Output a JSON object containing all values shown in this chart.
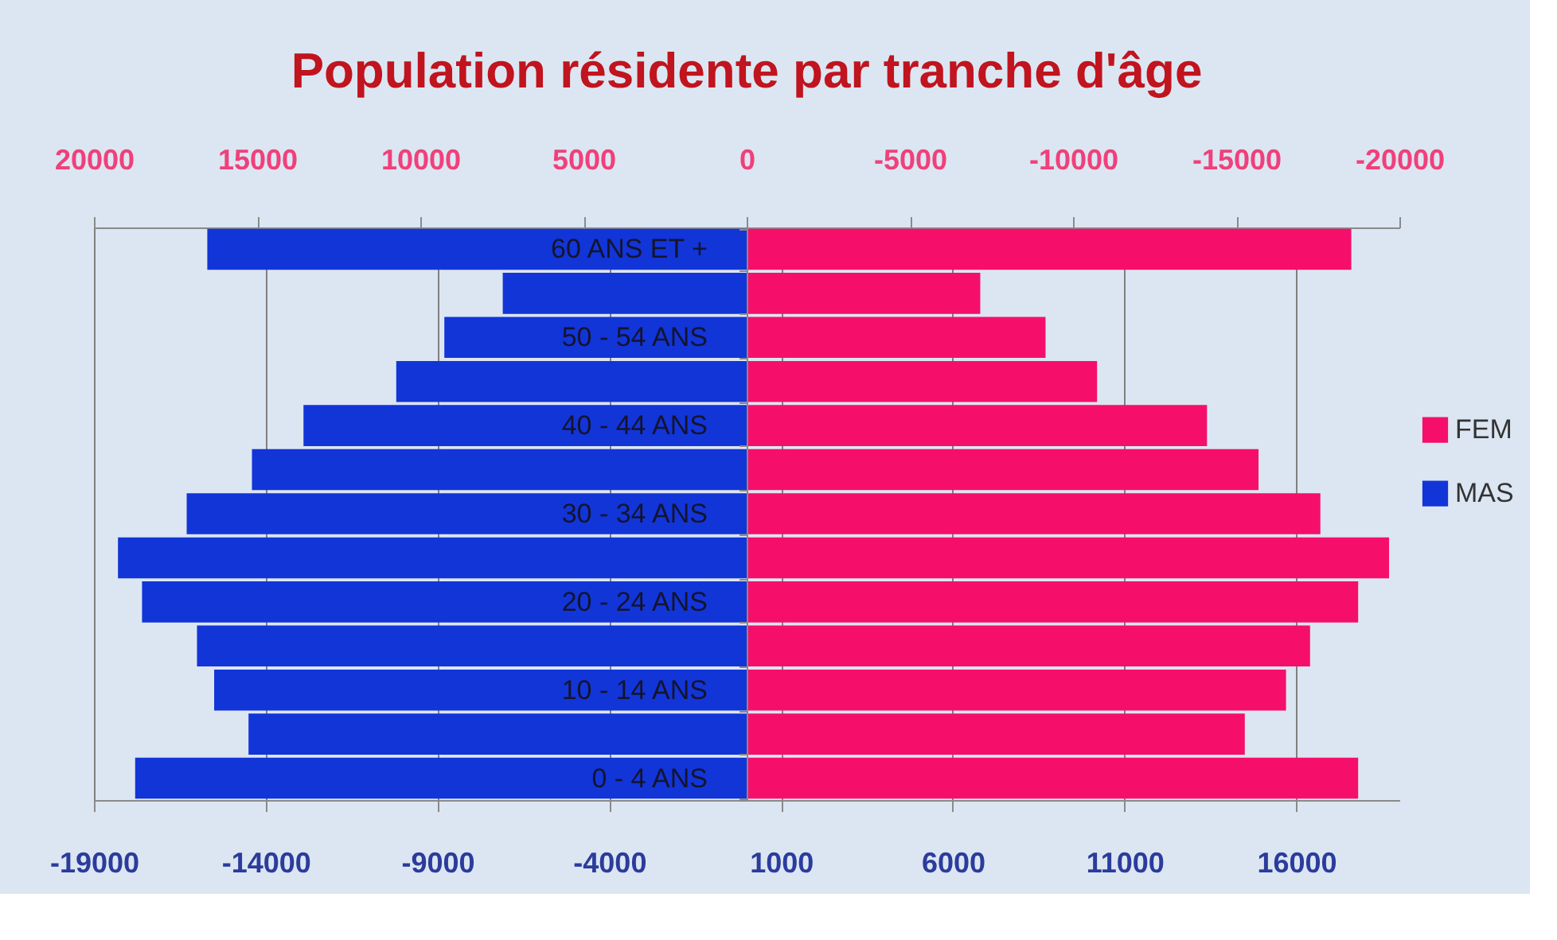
{
  "chart_data": {
    "type": "bar",
    "orientation": "horizontal",
    "stacked": true,
    "title": "Population résidente par tranche d'âge",
    "categories": [
      "60 ANS ET +",
      null,
      "50 - 54 ANS",
      null,
      "40 - 44 ANS",
      null,
      "30 - 34 ANS",
      null,
      "20 - 24 ANS",
      null,
      "10 - 14 ANS",
      null,
      "0 -  4 ANS"
    ],
    "series": [
      {
        "name": "FEM",
        "color": "#f50f6b",
        "values": [
          17600,
          6800,
          8700,
          10200,
          13400,
          14900,
          16700,
          18700,
          17800,
          16400,
          15700,
          14500,
          17800
        ]
      },
      {
        "name": "MAS",
        "color": "#1235d8",
        "values": [
          -15700,
          -7100,
          -8800,
          -10200,
          -12900,
          -14400,
          -16300,
          -18300,
          -17600,
          -16000,
          -15500,
          -14500,
          -17800
        ]
      }
    ],
    "xlim": [
      -19000,
      19000
    ],
    "xticks": [
      -19000,
      -14000,
      -9000,
      -4000,
      1000,
      6000,
      11000,
      16000
    ],
    "x2lim": [
      20000,
      -20000
    ],
    "x2ticks": [
      20000,
      15000,
      10000,
      5000,
      0,
      -5000,
      -10000,
      -15000,
      -20000
    ],
    "grid": "x",
    "legend": "right"
  }
}
